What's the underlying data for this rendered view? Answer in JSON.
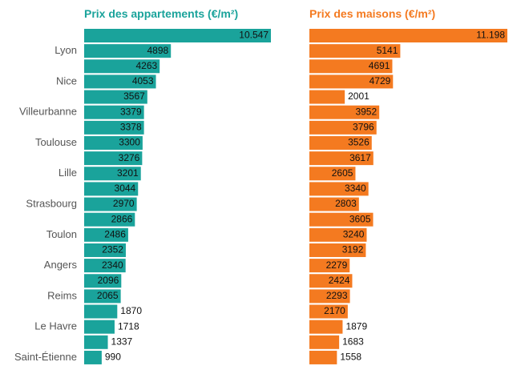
{
  "chart_data": {
    "type": "bar",
    "orientation": "horizontal",
    "labels": [
      "",
      "Lyon",
      "",
      "Nice",
      "",
      "Villeurbanne",
      "",
      "Toulouse",
      "",
      "Lille",
      "",
      "Strasbourg",
      "",
      "Toulon",
      "",
      "Angers",
      "",
      "Reims",
      "",
      "Le Havre",
      "",
      "Saint-Étienne"
    ],
    "panels": [
      {
        "title": "Prix des appartements (€/m²)",
        "color": "#1aa39b",
        "values": [
          10547,
          4898,
          4263,
          4053,
          3567,
          3379,
          3378,
          3300,
          3276,
          3201,
          3044,
          2970,
          2866,
          2486,
          2352,
          2340,
          2096,
          2065,
          1870,
          1718,
          1337,
          990
        ],
        "value_labels": [
          "10.547",
          "4898",
          "4263",
          "4053",
          "3567",
          "3379",
          "3378",
          "3300",
          "3276",
          "3201",
          "3044",
          "2970",
          "2866",
          "2486",
          "2352",
          "2340",
          "2096",
          "2065",
          "1870",
          "1718",
          "1337",
          "990"
        ]
      },
      {
        "title": "Prix des maisons (€/m²)",
        "color": "#f47a20",
        "values": [
          11198,
          5141,
          4691,
          4729,
          2001,
          3952,
          3796,
          3526,
          3617,
          2605,
          3340,
          2803,
          3605,
          3240,
          3192,
          2279,
          2424,
          2293,
          2170,
          1879,
          1683,
          1558
        ],
        "value_labels": [
          "11.198",
          "5141",
          "4691",
          "4729",
          "2001",
          "3952",
          "3796",
          "3526",
          "3617",
          "2605",
          "3340",
          "2803",
          "3605",
          "3240",
          "3192",
          "2279",
          "2424",
          "2293",
          "2170",
          "1879",
          "1683",
          "1558"
        ]
      }
    ],
    "grid": false,
    "legend": "none"
  }
}
